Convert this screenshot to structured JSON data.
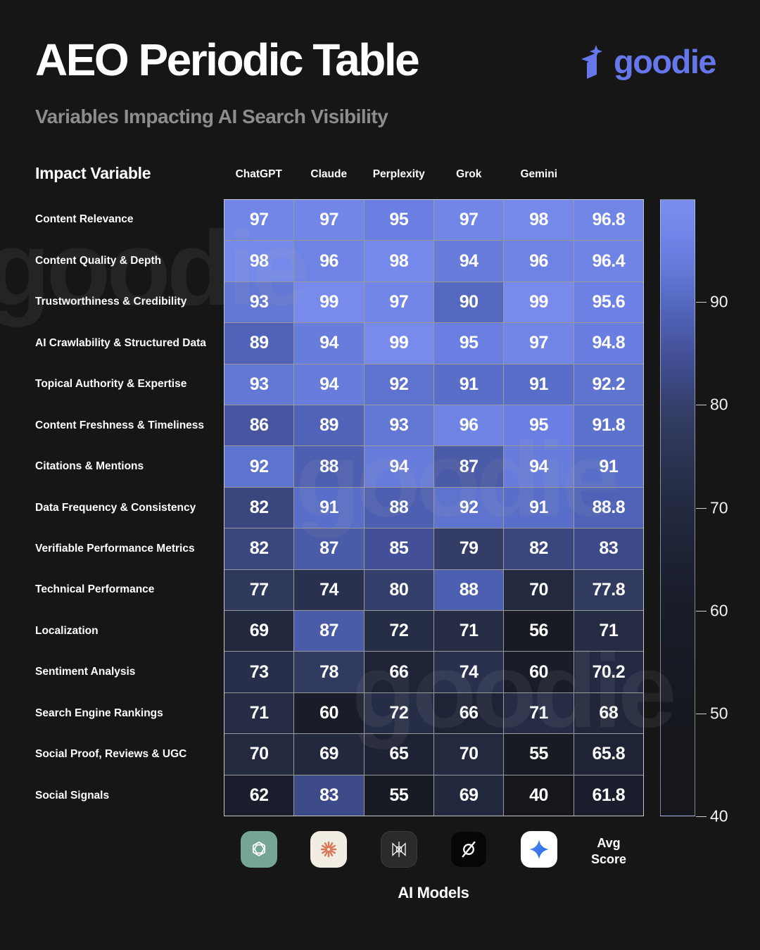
{
  "header": {
    "title": "AEO Periodic Table",
    "subtitle": "Variables Impacting AI Search Visibility",
    "brand": "goodie"
  },
  "table": {
    "row_axis_label": "Impact Variable",
    "col_axis_label": "AI Models",
    "avg_label": "Avg Score"
  },
  "chart_data": {
    "type": "heatmap",
    "title": "AEO Periodic Table",
    "subtitle": "Variables Impacting AI Search Visibility",
    "x_categories": [
      "ChatGPT",
      "Claude",
      "Perplexity",
      "Grok",
      "Gemini",
      "Avg Score"
    ],
    "x_icon_names": [
      "openai-icon",
      "claude-icon",
      "perplexity-icon",
      "grok-icon",
      "gemini-icon"
    ],
    "y_categories": [
      "Content Relevance",
      "Content Quality & Depth",
      "Trustworthiness & Credibility",
      "AI Crawlability & Structured Data",
      "Topical Authority & Expertise",
      "Content Freshness & Timeliness",
      "Citations & Mentions",
      "Data Frequency & Consistency",
      "Verifiable Performance Metrics",
      "Technical Performance",
      "Localization",
      "Sentiment Analysis",
      "Search Engine Rankings",
      "Social Proof, Reviews & UGC",
      "Social Signals"
    ],
    "rows": [
      {
        "label": "Content Relevance",
        "values": [
          97,
          97,
          95,
          97,
          98,
          96.8
        ]
      },
      {
        "label": "Content Quality & Depth",
        "values": [
          98,
          96,
          98,
          94,
          96,
          96.4
        ]
      },
      {
        "label": "Trustworthiness & Credibility",
        "values": [
          93,
          99,
          97,
          90,
          99,
          95.6
        ]
      },
      {
        "label": "AI Crawlability & Structured Data",
        "values": [
          89,
          94,
          99,
          95,
          97,
          94.8
        ]
      },
      {
        "label": "Topical Authority & Expertise",
        "values": [
          93,
          94,
          92,
          91,
          91,
          92.2
        ]
      },
      {
        "label": "Content Freshness & Timeliness",
        "values": [
          86,
          89,
          93,
          96,
          95,
          91.8
        ]
      },
      {
        "label": "Citations & Mentions",
        "values": [
          92,
          88,
          94,
          87,
          94,
          91
        ]
      },
      {
        "label": "Data Frequency & Consistency",
        "values": [
          82,
          91,
          88,
          92,
          91,
          88.8
        ]
      },
      {
        "label": "Verifiable Performance Metrics",
        "values": [
          82,
          87,
          85,
          79,
          82,
          83
        ]
      },
      {
        "label": "Technical Performance",
        "values": [
          77,
          74,
          80,
          88,
          70,
          77.8
        ]
      },
      {
        "label": "Localization",
        "values": [
          69,
          87,
          72,
          71,
          56,
          71
        ]
      },
      {
        "label": "Sentiment Analysis",
        "values": [
          73,
          78,
          66,
          74,
          60,
          70.2
        ]
      },
      {
        "label": "Search Engine Rankings",
        "values": [
          71,
          60,
          72,
          66,
          71,
          68
        ]
      },
      {
        "label": "Social Proof, Reviews & UGC",
        "values": [
          70,
          69,
          65,
          70,
          55,
          65.8
        ]
      },
      {
        "label": "Social Signals",
        "values": [
          62,
          83,
          55,
          69,
          40,
          61.8
        ]
      }
    ],
    "colorbar": {
      "min": 40,
      "max": 100,
      "ticks": [
        90,
        80,
        70,
        60,
        50,
        40
      ]
    },
    "legend_position": "right",
    "grid": true
  },
  "colors": {
    "background": "#161616",
    "brand_accent": "#6577ea",
    "subtitle_gray": "#8d8d8d",
    "cell_text": "#ffffff",
    "gridline": "#e1e1e1",
    "colormap_anchors": [
      {
        "value": 40,
        "hex": "#15171c"
      },
      {
        "value": 50,
        "hex": "#16181f"
      },
      {
        "value": 58,
        "hex": "#181c26"
      },
      {
        "value": 62,
        "hex": "#1a1e2c"
      },
      {
        "value": 66,
        "hex": "#1e2336"
      },
      {
        "value": 70,
        "hex": "#232a40"
      },
      {
        "value": 74,
        "hex": "#29314e"
      },
      {
        "value": 78,
        "hex": "#313b60"
      },
      {
        "value": 80,
        "hex": "#353f6b"
      },
      {
        "value": 83,
        "hex": "#3d4a88"
      },
      {
        "value": 85,
        "hex": "#434f98"
      },
      {
        "value": 87,
        "hex": "#4a5ba8"
      },
      {
        "value": 89,
        "hex": "#5063b9"
      },
      {
        "value": 91,
        "hex": "#596ec8"
      },
      {
        "value": 93,
        "hex": "#6378d4"
      },
      {
        "value": 95,
        "hex": "#6b7fe2"
      },
      {
        "value": 97,
        "hex": "#7286e8"
      },
      {
        "value": 100,
        "hex": "#7b8eee"
      }
    ],
    "model_tile_bg": {
      "openai-icon": "#76a693",
      "claude-icon": "#f2ede3",
      "perplexity-icon": "#2b2b2d",
      "grok-icon": "#060606",
      "gemini-icon": "#ffffff"
    },
    "claude_ray": "#d97757",
    "gemini_gradient": [
      "#5a8cf8",
      "#1b66e0"
    ]
  }
}
